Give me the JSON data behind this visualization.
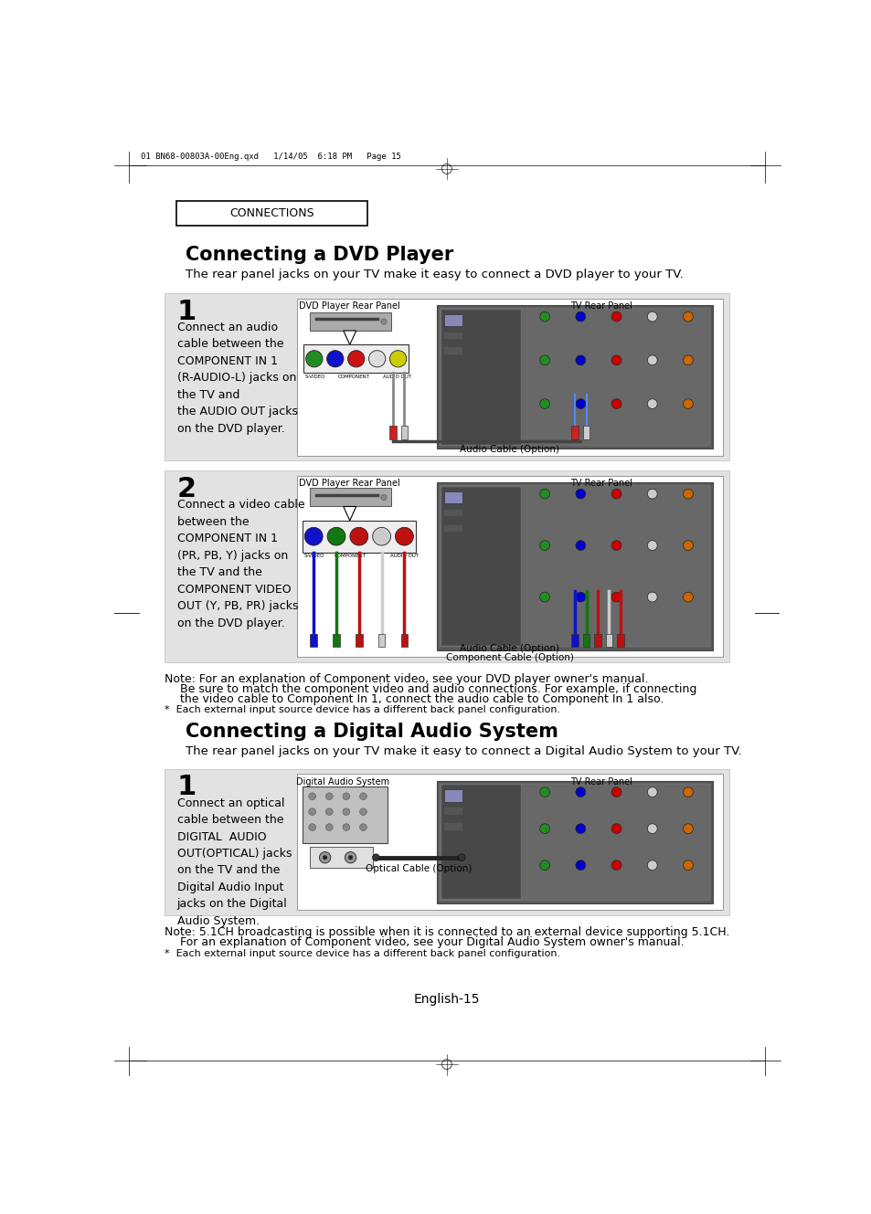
{
  "header_text": "01 BN68-00803A-00Eng.qxd   1/14/05  6:18 PM   Page 15",
  "section_label": "CONNECTIONS",
  "dvd_title": "Connecting a DVD Player",
  "dvd_subtitle": "The rear panel jacks on your TV make it easy to connect a DVD player to your TV.",
  "step1_num": "1",
  "step1_text": "Connect an audio\ncable between the\nCOMPONENT IN 1\n(R-AUDIO-L) jacks on\nthe TV and\nthe AUDIO OUT jacks\non the DVD player.",
  "dvd_label1": "DVD Player Rear Panel",
  "tv_label1": "TV Rear Panel",
  "audio_cable": "Audio Cable (Option)",
  "step2_num": "2",
  "step2_text": "Connect a video cable\nbetween the\nCOMPONENT IN 1\n(PR, PB, Y) jacks on\nthe TV and the\nCOMPONENT VIDEO\nOUT (Y, PB, PR) jacks\non the DVD player.",
  "dvd_label2": "DVD Player Rear Panel",
  "tv_label2": "TV Rear Panel",
  "audio_cable2": "Audio Cable (Option)",
  "comp_cable": "Component Cable (Option)",
  "note1_line1": "Note: For an explanation of Component video, see your DVD player owner's manual.",
  "note1_line2": "Be sure to match the component video and audio connections. For example, if connecting",
  "note1_line3": "the video cable to Component In 1, connect the audio cable to Component In 1 also.",
  "note1_star": "*  Each external input source device has a different back panel configuration.",
  "digital_title": "Connecting a Digital Audio System",
  "digital_subtitle": "The rear panel jacks on your TV make it easy to connect a Digital Audio System to your TV.",
  "step3_num": "1",
  "step3_text": "Connect an optical\ncable between the\nDIGITAL  AUDIO\nOUT(OPTICAL) jacks\non the TV and the\nDigital Audio Input\njacks on the Digital\nAudio System.",
  "das_label": "Digital Audio System",
  "tv_label3": "TV Rear Panel",
  "optical_cable": "Optical Cable (Option)",
  "note2_line1": "Note: 5.1CH broadcasting is possible when it is connected to an external device supporting 5.1CH.",
  "note2_line2": "For an explanation of Component video, see your Digital Audio System owner's manual.",
  "note2_star": "*  Each external input source device has a different back panel configuration.",
  "page_num": "English-15"
}
